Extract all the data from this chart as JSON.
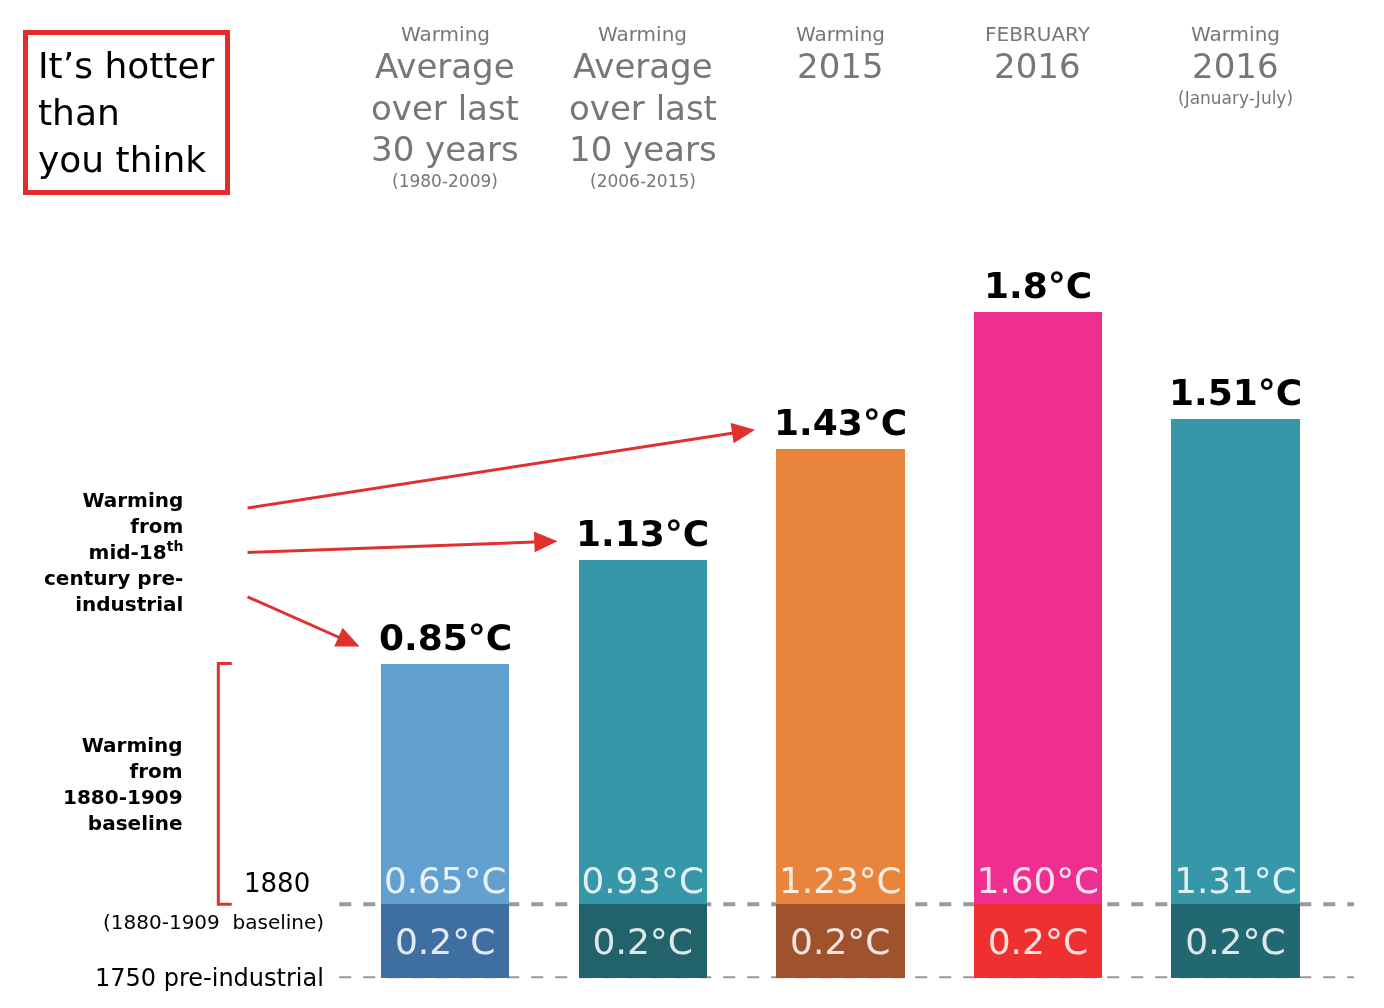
{
  "chart_data": {
    "type": "bar",
    "title": "It’s hotter\nthan\nyou think",
    "categories": [
      "Warming\nAverage\nover last\n30 years\n(1980-2009)",
      "Warming\nAverage\nover last\n10 years\n(2006-2015)",
      "Warming\n2015",
      "FEBRUARY\n2016",
      "Warming\n2016\n(January-July)"
    ],
    "stacked": true,
    "series": [
      {
        "colors": [
          "#3e6fa0",
          "#22636b",
          "#a0522d",
          "#ee3030",
          "#226872"
        ],
        "values": [
          0.2,
          0.2,
          0.2,
          0.2,
          0.2
        ],
        "value_labels": [
          "0.2°C",
          "0.2°C",
          "0.2°C",
          "0.2°C",
          "0.2°C"
        ]
      },
      {
        "colors": [
          "#62a0d0",
          "#3597a8",
          "#e8843c",
          "#ee2f8f",
          "#3597a8"
        ],
        "values": [
          0.65,
          0.93,
          1.23,
          1.6,
          1.31
        ],
        "value_labels": [
          "0.65°C",
          "0.93°C",
          "1.23°C",
          "1.60°C",
          "1.31°C"
        ]
      }
    ],
    "totals": [
      "0.85°C",
      "1.13°C",
      "1.43°C",
      "1.8°C",
      "1.51°C"
    ],
    "ref_lines": [
      {
        "axis": "y",
        "value": 0,
        "label": "1750 pre-industrial",
        "color": "#999999",
        "line_style": "dashed"
      },
      {
        "axis": "y",
        "value": 0.2,
        "label": "1880\n(1880-1909  baseline)",
        "color": "#999999",
        "line_style": "dashed"
      }
    ],
    "annotations": [
      "Warming\nfrom\nmid-18$^{th}$\ncentury pre-\nindustrial",
      "Warming\nfrom\n1880-1909\nbaseline"
    ],
    "grid": false
  }
}
